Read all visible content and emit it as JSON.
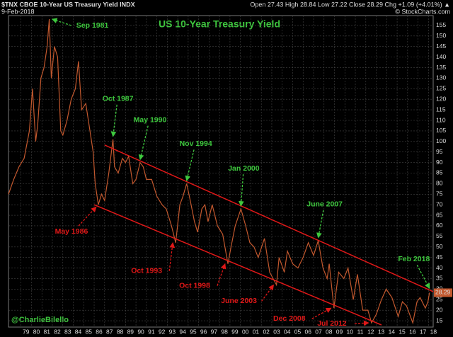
{
  "header": {
    "symbol": "$TNX CBOE 10-Year US Treasury Yield INDX",
    "date": "9-Feb-2018",
    "quote": "Open 27.43  High 28.84  Low 27.22  Close 28.29  Chg +1.09 (+4.01%) ▲",
    "source": "© StockCharts.com"
  },
  "chart_data": {
    "type": "line",
    "title": "US 10-Year Treasury Yield",
    "credit": "@CharlieBilello",
    "color": "#c2582e",
    "background": "#000000",
    "grid": true,
    "title_color": "#3ec83e",
    "x": [
      1977.8,
      1978.3,
      1978.8,
      1979.3,
      1979.8,
      1980.1,
      1980.4,
      1980.6,
      1980.9,
      1981.2,
      1981.5,
      1981.7,
      1981.9,
      1982.2,
      1982.5,
      1982.8,
      1983.0,
      1983.4,
      1983.8,
      1984.2,
      1984.5,
      1984.8,
      1985.2,
      1985.6,
      1985.9,
      1986.1,
      1986.4,
      1986.7,
      1987.0,
      1987.4,
      1987.8,
      1987.95,
      1988.3,
      1988.7,
      1989.0,
      1989.3,
      1989.7,
      1990.0,
      1990.4,
      1990.7,
      1991.0,
      1991.5,
      1992.0,
      1992.5,
      1992.9,
      1993.4,
      1993.8,
      1994.2,
      1994.5,
      1994.85,
      1995.2,
      1995.6,
      1995.9,
      1996.3,
      1996.6,
      1996.9,
      1997.3,
      1997.8,
      1998.3,
      1998.8,
      1999.1,
      1999.5,
      2000.05,
      2000.5,
      2000.9,
      2001.3,
      2001.7,
      2002.3,
      2002.8,
      2003.45,
      2003.7,
      2004.2,
      2004.5,
      2005.0,
      2005.5,
      2006.0,
      2006.5,
      2007.0,
      2007.45,
      2007.9,
      2008.3,
      2008.5,
      2008.95,
      2009.4,
      2009.9,
      2010.3,
      2010.8,
      2011.2,
      2011.7,
      2012.2,
      2012.55,
      2013.0,
      2013.5,
      2013.95,
      2014.5,
      2015.1,
      2015.5,
      2015.9,
      2016.5,
      2016.9,
      2017.2,
      2017.7,
      2017.95,
      2018.1
    ],
    "values": [
      75,
      82,
      88,
      92,
      105,
      125,
      100,
      108,
      130,
      135,
      145,
      158,
      130,
      145,
      140,
      105,
      103,
      110,
      120,
      125,
      138,
      115,
      118,
      105,
      95,
      80,
      70,
      75,
      72,
      85,
      101,
      88,
      85,
      92,
      90,
      93,
      80,
      82,
      90,
      88,
      82,
      82,
      74,
      70,
      68,
      60,
      52,
      70,
      74,
      80,
      72,
      62,
      57,
      68,
      70,
      62,
      70,
      60,
      56,
      42,
      50,
      60,
      68,
      60,
      52,
      50,
      45,
      54,
      38,
      32,
      45,
      38,
      48,
      42,
      40,
      45,
      52,
      46,
      53,
      40,
      35,
      42,
      21,
      38,
      35,
      40,
      25,
      37,
      20,
      20,
      14,
      18,
      25,
      30,
      26,
      17,
      24,
      22,
      14,
      24,
      26,
      21,
      24,
      28.29
    ],
    "xlim": [
      1977.8,
      2018.45
    ],
    "ylim": [
      13,
      158
    ],
    "yticks": [
      15,
      20,
      25,
      30,
      35,
      40,
      45,
      50,
      55,
      60,
      65,
      70,
      75,
      80,
      85,
      90,
      95,
      100,
      105,
      110,
      115,
      120,
      125,
      130,
      135,
      140,
      145,
      150,
      155
    ],
    "xticks": [
      {
        "value": 1979,
        "label": "79"
      },
      {
        "value": 1980,
        "label": "80"
      },
      {
        "value": 1981,
        "label": "81"
      },
      {
        "value": 1982,
        "label": "82"
      },
      {
        "value": 1983,
        "label": "83"
      },
      {
        "value": 1984,
        "label": "84"
      },
      {
        "value": 1985,
        "label": "85"
      },
      {
        "value": 1986,
        "label": "86"
      },
      {
        "value": 1987,
        "label": "87"
      },
      {
        "value": 1988,
        "label": "88"
      },
      {
        "value": 1989,
        "label": "89"
      },
      {
        "value": 1990,
        "label": "90"
      },
      {
        "value": 1991,
        "label": "91"
      },
      {
        "value": 1992,
        "label": "92"
      },
      {
        "value": 1993,
        "label": "93"
      },
      {
        "value": 1994,
        "label": "94"
      },
      {
        "value": 1995,
        "label": "95"
      },
      {
        "value": 1996,
        "label": "96"
      },
      {
        "value": 1997,
        "label": "97"
      },
      {
        "value": 1998,
        "label": "98"
      },
      {
        "value": 1999,
        "label": "99"
      },
      {
        "value": 2000,
        "label": "00"
      },
      {
        "value": 2001,
        "label": "01"
      },
      {
        "value": 2002,
        "label": "02"
      },
      {
        "value": 2003,
        "label": "03"
      },
      {
        "value": 2004,
        "label": "04"
      },
      {
        "value": 2005,
        "label": "05"
      },
      {
        "value": 2006,
        "label": "06"
      },
      {
        "value": 2007,
        "label": "07"
      },
      {
        "value": 2008,
        "label": "08"
      },
      {
        "value": 2009,
        "label": "09"
      },
      {
        "value": 2010,
        "label": "10"
      },
      {
        "value": 2011,
        "label": "11"
      },
      {
        "value": 2012,
        "label": "12"
      },
      {
        "value": 2013,
        "label": "13"
      },
      {
        "value": 2014,
        "label": "14"
      },
      {
        "value": 2015,
        "label": "15"
      },
      {
        "value": 2016,
        "label": "16"
      },
      {
        "value": 2017,
        "label": "17"
      },
      {
        "value": 2018,
        "label": "18"
      }
    ],
    "trend_lines": [
      {
        "color": "#e01818",
        "x": [
          1987.0,
          2018.45
        ],
        "values": [
          98.3,
          28.8
        ]
      },
      {
        "color": "#e01818",
        "x": [
          1986.0,
          2013.5
        ],
        "values": [
          70,
          13
        ]
      }
    ],
    "annotations": [
      {
        "text": "Sep 1981",
        "x": 1981.7,
        "y": 158,
        "color": "#3ec83e"
      },
      {
        "text": "Oct 1987",
        "x": 1987.8,
        "y": 101,
        "color": "#3ec83e"
      },
      {
        "text": "May 1990",
        "x": 1990.4,
        "y": 90,
        "color": "#3ec83e"
      },
      {
        "text": "Nov 1994",
        "x": 1994.85,
        "y": 80,
        "color": "#3ec83e"
      },
      {
        "text": "Jan 2000",
        "x": 2000.05,
        "y": 68,
        "color": "#3ec83e"
      },
      {
        "text": "June 2007",
        "x": 2007.45,
        "y": 53,
        "color": "#3ec83e"
      },
      {
        "text": "Feb 2018",
        "x": 2018.1,
        "y": 29,
        "color": "#3ec83e"
      },
      {
        "text": "May 1986",
        "x": 1986.4,
        "y": 70,
        "color": "#e01818"
      },
      {
        "text": "Oct 1993",
        "x": 1993.8,
        "y": 52,
        "color": "#e01818"
      },
      {
        "text": "Oct 1998",
        "x": 1998.8,
        "y": 42,
        "color": "#e01818"
      },
      {
        "text": "June 2003",
        "x": 2003.45,
        "y": 32,
        "color": "#e01818"
      },
      {
        "text": "Dec 2008",
        "x": 2008.95,
        "y": 21,
        "color": "#e01818"
      },
      {
        "text": "Jul 2012",
        "x": 2012.55,
        "y": 14,
        "color": "#e01818"
      }
    ]
  }
}
